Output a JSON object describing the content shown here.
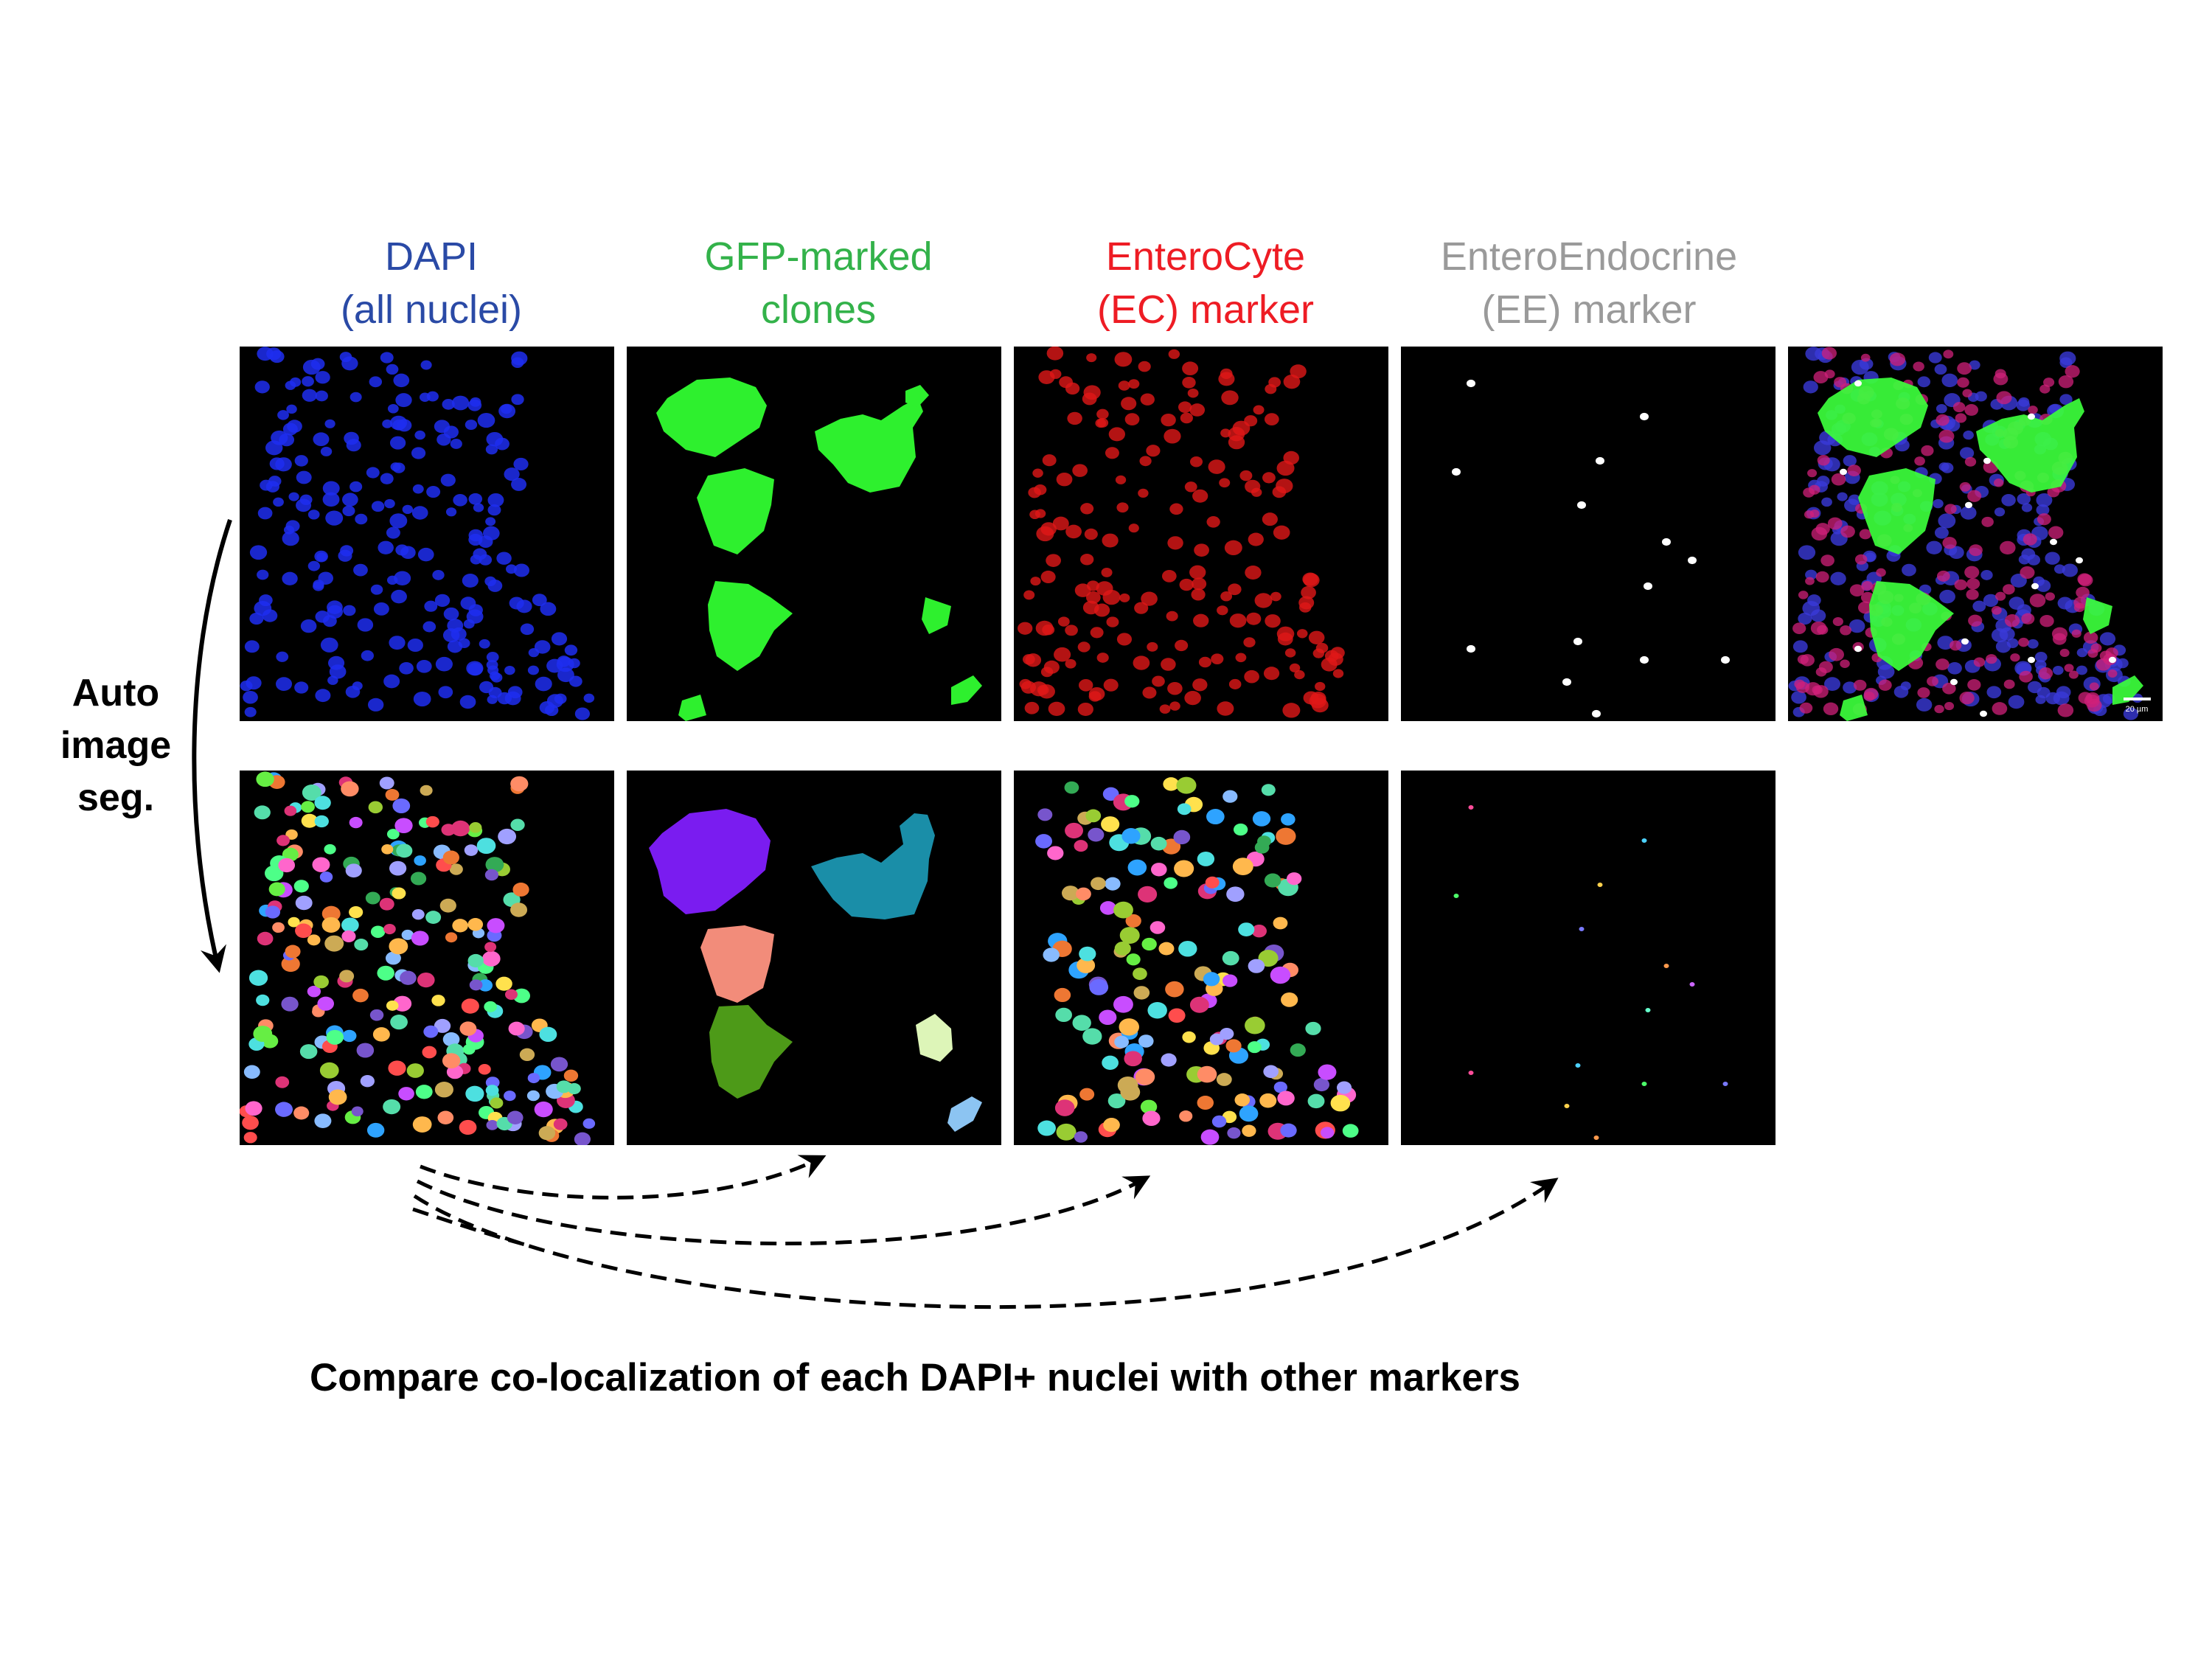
{
  "columns": [
    {
      "line1": "DAPI",
      "line2": "(all nuclei)",
      "color": "#2a4aa6"
    },
    {
      "line1": "GFP-marked",
      "line2": "clones",
      "color": "#33b24a"
    },
    {
      "line1": "EnteroCyte",
      "line2": "(EC) marker",
      "color": "#ee1c24"
    },
    {
      "line1": "EnteroEndocrine",
      "line2": "(EE) marker",
      "color": "#9a9a9a"
    }
  ],
  "side_label": {
    "line1": "Auto",
    "line2": "image",
    "line3": "seg."
  },
  "scale_bar": "20 µm",
  "caption": "Compare co-localization of each DAPI+ nuclei with other markers",
  "colors": {
    "dapi": "#1f2ef0",
    "gfp": "#2ef02e",
    "ec": "#e01818",
    "ee": "#ffffff",
    "panel_bg": "#000000",
    "arrow": "#000000"
  },
  "icons": [
    "curved-arrow",
    "dashed-curved-arrow"
  ]
}
